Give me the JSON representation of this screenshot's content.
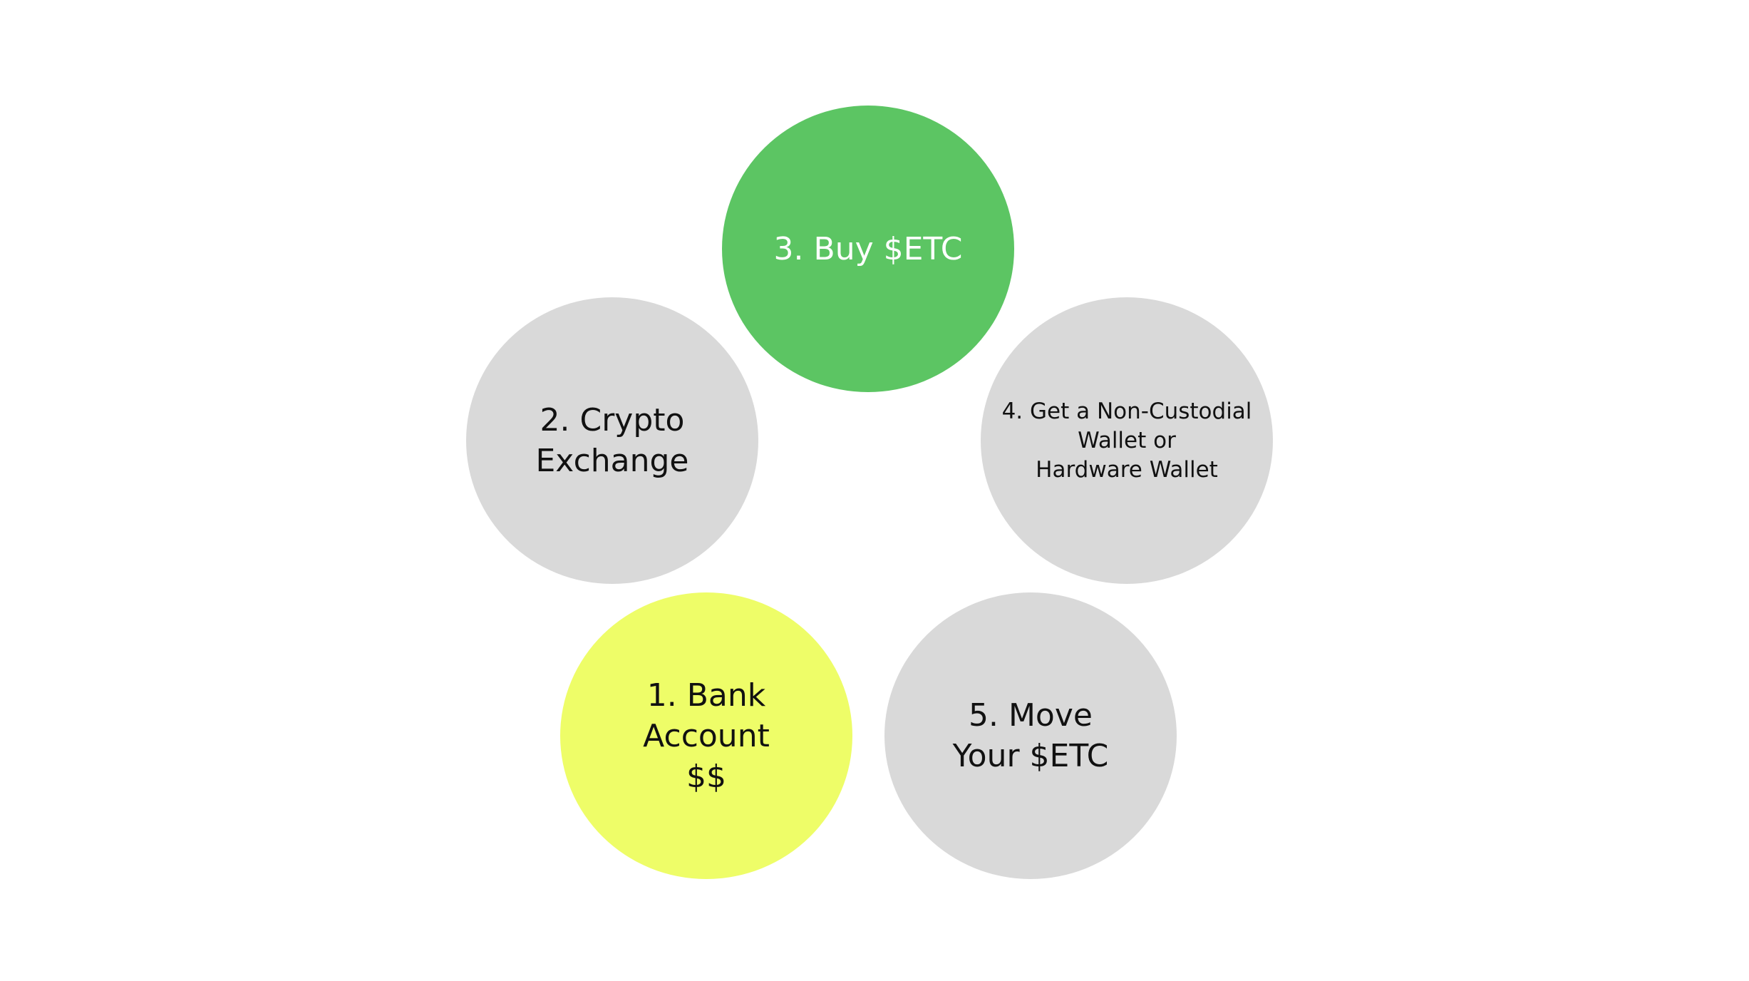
{
  "steps": [
    {
      "label": "1. Bank\nAccount\n$$",
      "color": "#eefd68"
    },
    {
      "label": "2. Crypto\nExchange",
      "color": "#d9d9d9"
    },
    {
      "label": "3. Buy $ETC",
      "color": "#5cc563"
    },
    {
      "label": "4. Get a Non-Custodial\nWallet or\nHardware Wallet",
      "color": "#d9d9d9"
    },
    {
      "label": "5. Move\nYour $ETC",
      "color": "#d9d9d9"
    }
  ]
}
